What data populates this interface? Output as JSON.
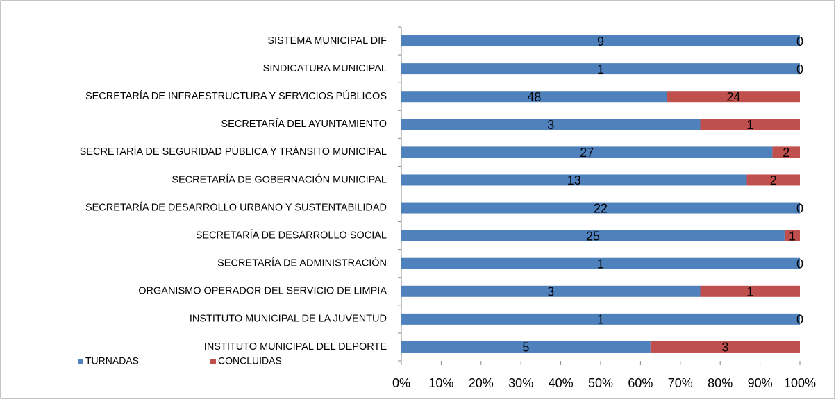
{
  "chart_data": {
    "type": "bar",
    "orientation": "horizontal",
    "stacking": "percent",
    "categories": [
      "SISTEMA MUNICIPAL DIF",
      "SINDICATURA MUNICIPAL",
      "SECRETARÍA DE INFRAESTRUCTURA Y SERVICIOS PÚBLICOS",
      "SECRETARÍA DEL AYUNTAMIENTO",
      "SECRETARÍA DE SEGURIDAD PÚBLICA Y TRÁNSITO MUNICIPAL",
      "SECRETARÍA DE GOBERNACIÓN MUNICIPAL",
      "SECRETARÍA DE DESARROLLO URBANO Y SUSTENTABILIDAD",
      "SECRETARÍA DE DESARROLLO SOCIAL",
      "SECRETARÍA DE ADMINISTRACIÓN",
      "ORGANISMO OPERADOR DEL SERVICIO DE LIMPIA",
      "INSTITUTO MUNICIPAL DE LA JUVENTUD",
      "INSTITUTO MUNICIPAL DEL DEPORTE"
    ],
    "series": [
      {
        "name": "TURNADAS",
        "color": "#4f81bd",
        "values": [
          9,
          1,
          48,
          3,
          27,
          13,
          22,
          25,
          1,
          3,
          1,
          5
        ]
      },
      {
        "name": "CONCLUIDAS",
        "color": "#c0504d",
        "values": [
          0,
          0,
          24,
          1,
          2,
          2,
          0,
          1,
          0,
          1,
          0,
          3
        ]
      }
    ],
    "xlim": [
      0,
      100
    ],
    "xticks": [
      {
        "value": 0,
        "label": "0%"
      },
      {
        "value": 10,
        "label": "10%"
      },
      {
        "value": 20,
        "label": "20%"
      },
      {
        "value": 30,
        "label": "30%"
      },
      {
        "value": 40,
        "label": "40%"
      },
      {
        "value": 50,
        "label": "50%"
      },
      {
        "value": 60,
        "label": "60%"
      },
      {
        "value": 70,
        "label": "70%"
      },
      {
        "value": 80,
        "label": "80%"
      },
      {
        "value": 90,
        "label": "90%"
      },
      {
        "value": 100,
        "label": "100%"
      }
    ],
    "legend": "bottom-left"
  }
}
